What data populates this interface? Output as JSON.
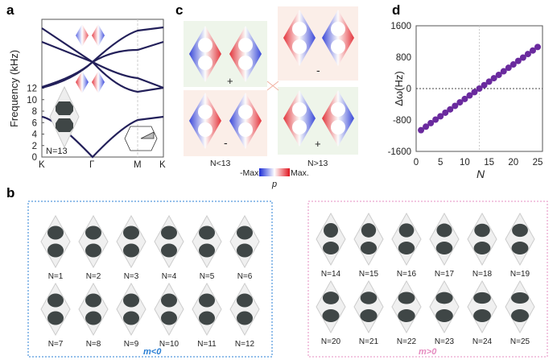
{
  "panels": {
    "a": {
      "label": "a",
      "ylabel": "Frequency (kHz)",
      "yticks": [
        "0",
        "2",
        "4",
        "6",
        "8",
        "10",
        "12"
      ],
      "xticks": [
        "K",
        "Γ",
        "M",
        "K"
      ],
      "annotation": "N=13",
      "bz_labels": [
        "Γ",
        "M",
        "K"
      ],
      "band_color": "#23205a"
    },
    "b": {
      "label": "b",
      "left_group": {
        "caption": "m<0",
        "color": "#2a7fd4",
        "labels": [
          "N=1",
          "N=2",
          "N=3",
          "N=4",
          "N=5",
          "N=6",
          "N=7",
          "N=8",
          "N=9",
          "N=10",
          "N=11",
          "N=12"
        ]
      },
      "right_group": {
        "caption": "m>0",
        "color": "#e58cc0",
        "labels": [
          "N=14",
          "N=15",
          "N=16",
          "N=17",
          "N=18",
          "N=19",
          "N=20",
          "N=21",
          "N=22",
          "N=23",
          "N=24",
          "N=25"
        ]
      }
    },
    "c": {
      "label": "c",
      "signs": [
        "+",
        "-",
        "-",
        "+"
      ],
      "left_caption": "N<13",
      "right_caption": "N>13",
      "colorbar_min": "-Max",
      "colorbar_max": "Max.",
      "colorbar_label": "p"
    },
    "d": {
      "label": "d"
    }
  },
  "chart_data": {
    "type": "scatter",
    "title": "",
    "xlabel": "N",
    "ylabel": "Δω(Hz)",
    "xlim": [
      0,
      25
    ],
    "ylim": [
      -1600,
      1600
    ],
    "xticks": [
      "0",
      "5",
      "10",
      "15",
      "20",
      "25"
    ],
    "yticks": [
      "1600",
      "800",
      "0",
      "-800",
      "-1600"
    ],
    "marker_color": "#6a2a9e",
    "x": [
      1,
      2,
      3,
      4,
      5,
      6,
      7,
      8,
      9,
      10,
      11,
      12,
      13,
      14,
      15,
      16,
      17,
      18,
      19,
      20,
      21,
      22,
      23,
      24,
      25
    ],
    "y": [
      -1060,
      -970,
      -880,
      -790,
      -705,
      -615,
      -530,
      -440,
      -350,
      -265,
      -175,
      -90,
      0,
      88,
      176,
      265,
      350,
      440,
      530,
      615,
      705,
      790,
      880,
      970,
      1060
    ],
    "reference_lines": {
      "y": 0,
      "x": 13
    }
  }
}
